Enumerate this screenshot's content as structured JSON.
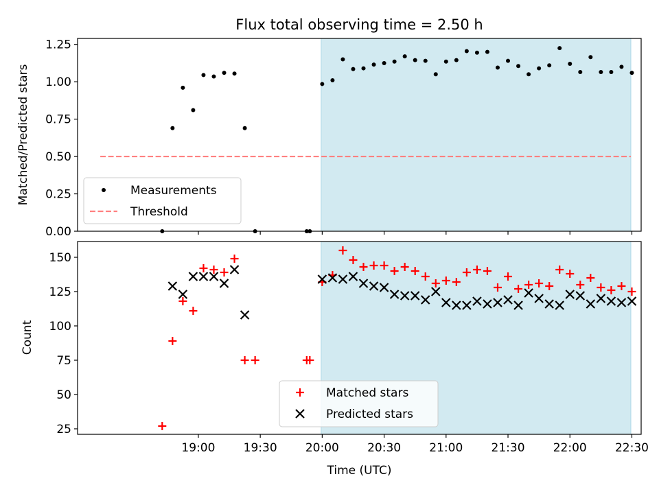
{
  "chart_data": {
    "type": "scatter",
    "title": "Flux total observing time = 2.50 h",
    "xlabel": "Time (UTC)",
    "x_unit": "minutes since 18:00 UTC",
    "xlim": [
      1.5,
      274.5
    ],
    "x_ticks": [
      {
        "value": 60,
        "label": "19:00"
      },
      {
        "value": 90,
        "label": "19:30"
      },
      {
        "value": 120,
        "label": "20:00"
      },
      {
        "value": 150,
        "label": "20:30"
      },
      {
        "value": 180,
        "label": "21:00"
      },
      {
        "value": 210,
        "label": "21:30"
      },
      {
        "value": 240,
        "label": "22:00"
      },
      {
        "value": 270,
        "label": "22:30"
      }
    ],
    "observing_window": {
      "start": 119.5,
      "end": 269.5,
      "color": "#add8e6"
    },
    "panels": [
      {
        "id": "ratio",
        "ylabel": "Matched/Predicted stars",
        "ylim": [
          0,
          1.29
        ],
        "y_ticks": [
          {
            "value": 0.0,
            "label": "0.00"
          },
          {
            "value": 0.25,
            "label": "0.25"
          },
          {
            "value": 0.5,
            "label": "0.50"
          },
          {
            "value": 0.75,
            "label": "0.75"
          },
          {
            "value": 1.0,
            "label": "1.00"
          },
          {
            "value": 1.25,
            "label": "1.25"
          }
        ],
        "legend": {
          "position": "lower-left",
          "entries": [
            "Measurements",
            "Threshold"
          ]
        },
        "series": [
          {
            "name": "Measurements",
            "marker": "dot",
            "color": "#000000",
            "points": [
              [
                42.5,
                0.0
              ],
              [
                47.5,
                0.69
              ],
              [
                52.5,
                0.96
              ],
              [
                57.5,
                0.81
              ],
              [
                62.5,
                1.045
              ],
              [
                67.5,
                1.035
              ],
              [
                72.5,
                1.06
              ],
              [
                77.5,
                1.055
              ],
              [
                82.5,
                0.69
              ],
              [
                87.5,
                0.0
              ],
              [
                112.5,
                0.0
              ],
              [
                114,
                0.0
              ],
              [
                120,
                0.985
              ],
              [
                125,
                1.01
              ],
              [
                130,
                1.15
              ],
              [
                135,
                1.085
              ],
              [
                140,
                1.09
              ],
              [
                145,
                1.115
              ],
              [
                150,
                1.125
              ],
              [
                155,
                1.135
              ],
              [
                160,
                1.17
              ],
              [
                165,
                1.145
              ],
              [
                170,
                1.14
              ],
              [
                175,
                1.05
              ],
              [
                180,
                1.135
              ],
              [
                185,
                1.145
              ],
              [
                190,
                1.205
              ],
              [
                195,
                1.195
              ],
              [
                200,
                1.2
              ],
              [
                205,
                1.095
              ],
              [
                210,
                1.14
              ],
              [
                215,
                1.105
              ],
              [
                220,
                1.05
              ],
              [
                225,
                1.09
              ],
              [
                230,
                1.11
              ],
              [
                235,
                1.225
              ],
              [
                240,
                1.12
              ],
              [
                245,
                1.065
              ],
              [
                250,
                1.165
              ],
              [
                255,
                1.065
              ],
              [
                260,
                1.065
              ],
              [
                265,
                1.1
              ],
              [
                270,
                1.06
              ]
            ]
          },
          {
            "name": "Threshold",
            "marker": "dashed-line",
            "color": "#ff8080",
            "points": [
              [
                12.5,
                0.5
              ],
              [
                269.5,
                0.5
              ]
            ]
          }
        ]
      },
      {
        "id": "counts",
        "ylabel": "Count",
        "ylim": [
          21,
          161.5
        ],
        "y_ticks": [
          {
            "value": 25,
            "label": "25"
          },
          {
            "value": 50,
            "label": "50"
          },
          {
            "value": 75,
            "label": "75"
          },
          {
            "value": 100,
            "label": "100"
          },
          {
            "value": 125,
            "label": "125"
          },
          {
            "value": 150,
            "label": "150"
          }
        ],
        "legend": {
          "position": "lower-center",
          "entries": [
            "Matched stars",
            "Predicted stars"
          ]
        },
        "series": [
          {
            "name": "Matched stars",
            "marker": "plus",
            "color": "#ff0000",
            "points": [
              [
                42.5,
                27
              ],
              [
                47.5,
                89
              ],
              [
                52.5,
                118
              ],
              [
                57.5,
                111
              ],
              [
                62.5,
                142
              ],
              [
                67.5,
                141
              ],
              [
                72.5,
                139
              ],
              [
                77.5,
                149
              ],
              [
                82.5,
                75
              ],
              [
                87.5,
                75
              ],
              [
                112.5,
                75
              ],
              [
                114,
                75
              ],
              [
                120,
                132
              ],
              [
                125,
                137
              ],
              [
                130,
                155
              ],
              [
                135,
                148
              ],
              [
                140,
                143
              ],
              [
                145,
                144
              ],
              [
                150,
                144
              ],
              [
                155,
                140
              ],
              [
                160,
                143
              ],
              [
                165,
                140
              ],
              [
                170,
                136
              ],
              [
                175,
                131
              ],
              [
                180,
                133
              ],
              [
                185,
                132
              ],
              [
                190,
                139
              ],
              [
                195,
                141
              ],
              [
                200,
                140
              ],
              [
                205,
                128
              ],
              [
                210,
                136
              ],
              [
                215,
                127
              ],
              [
                220,
                130
              ],
              [
                225,
                131
              ],
              [
                230,
                129
              ],
              [
                235,
                141
              ],
              [
                240,
                138
              ],
              [
                245,
                130
              ],
              [
                250,
                135
              ],
              [
                255,
                128
              ],
              [
                260,
                126
              ],
              [
                265,
                129
              ],
              [
                270,
                125
              ]
            ]
          },
          {
            "name": "Predicted stars",
            "marker": "x",
            "color": "#000000",
            "points": [
              [
                47.5,
                129
              ],
              [
                52.5,
                123
              ],
              [
                57.5,
                136
              ],
              [
                62.5,
                136
              ],
              [
                67.5,
                136
              ],
              [
                72.5,
                131
              ],
              [
                77.5,
                141
              ],
              [
                82.5,
                108
              ],
              [
                120,
                134
              ],
              [
                125,
                135
              ],
              [
                130,
                134
              ],
              [
                135,
                136
              ],
              [
                140,
                131
              ],
              [
                145,
                129
              ],
              [
                150,
                128
              ],
              [
                155,
                123
              ],
              [
                160,
                122
              ],
              [
                165,
                122
              ],
              [
                170,
                119
              ],
              [
                175,
                125
              ],
              [
                180,
                117
              ],
              [
                185,
                115
              ],
              [
                190,
                115
              ],
              [
                195,
                118
              ],
              [
                200,
                116
              ],
              [
                205,
                117
              ],
              [
                210,
                119
              ],
              [
                215,
                115
              ],
              [
                220,
                124
              ],
              [
                225,
                120
              ],
              [
                230,
                116
              ],
              [
                235,
                115
              ],
              [
                240,
                123
              ],
              [
                245,
                122
              ],
              [
                250,
                116
              ],
              [
                255,
                120
              ],
              [
                260,
                118
              ],
              [
                265,
                117
              ],
              [
                270,
                118
              ]
            ]
          }
        ]
      }
    ]
  }
}
